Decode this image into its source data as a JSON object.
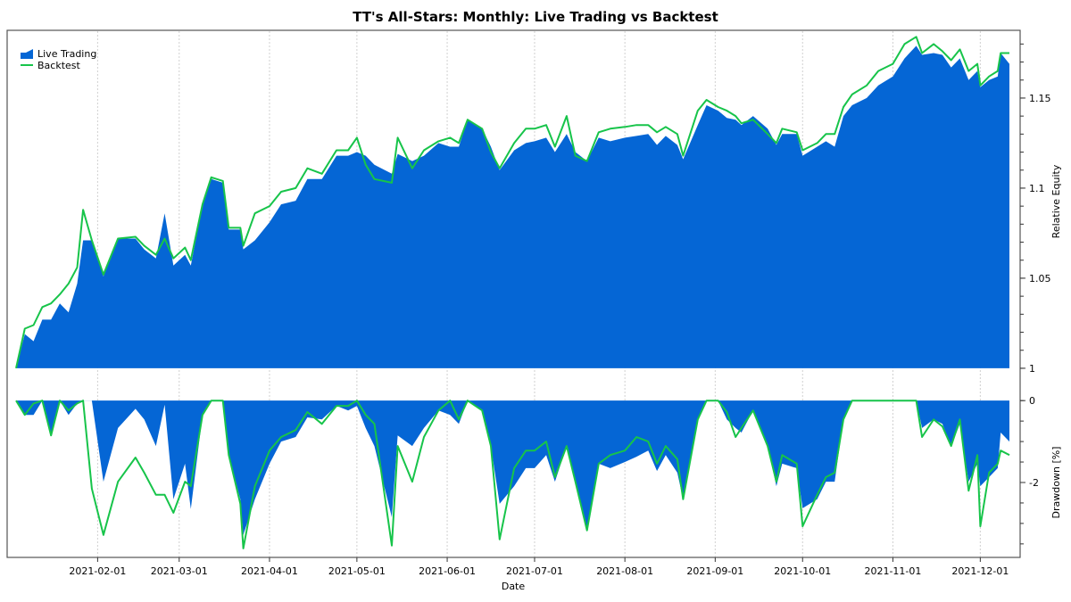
{
  "chart_data": [
    {
      "type": "area",
      "title": "TT's All-Stars: Monthly: Live Trading vs Backtest",
      "xlabel": "Date",
      "ylabel": "Relative Equity",
      "ylim": [
        0.9965,
        1.1876
      ],
      "xlim": [
        "2021-01-04",
        "2021-12-11"
      ],
      "x_ticks": [
        "2021-02-01",
        "2021-03-01",
        "2021-04-01",
        "2021-05-01",
        "2021-06-01",
        "2021-07-01",
        "2021-08-01",
        "2021-09-01",
        "2021-10-01",
        "2021-11-01",
        "2021-12-01"
      ],
      "y_ticks": [
        "1",
        "1.05",
        "1.1",
        "1.15"
      ],
      "y_tick_values": [
        1,
        1.05,
        1.1,
        1.15
      ],
      "grid": "vertical dotted at month ticks",
      "legend": "top-left",
      "colors": {
        "live": "#0566d5",
        "backtest": "#17c44a"
      },
      "x": [
        "2021-01-04",
        "2021-01-07",
        "2021-01-10",
        "2021-01-13",
        "2021-01-16",
        "2021-01-19",
        "2021-01-22",
        "2021-01-25",
        "2021-01-27",
        "2021-01-30",
        "2021-02-03",
        "2021-02-08",
        "2021-02-14",
        "2021-02-17",
        "2021-02-21",
        "2021-02-24",
        "2021-02-27",
        "2021-03-03",
        "2021-03-05",
        "2021-03-09",
        "2021-03-12",
        "2021-03-16",
        "2021-03-18",
        "2021-03-22",
        "2021-03-23",
        "2021-03-27",
        "2021-04-01",
        "2021-04-05",
        "2021-04-10",
        "2021-04-14",
        "2021-04-19",
        "2021-04-24",
        "2021-04-28",
        "2021-05-01",
        "2021-05-04",
        "2021-05-07",
        "2021-05-13",
        "2021-05-15",
        "2021-05-20",
        "2021-05-24",
        "2021-05-29",
        "2021-06-02",
        "2021-06-05",
        "2021-06-08",
        "2021-06-13",
        "2021-06-16",
        "2021-06-19",
        "2021-06-24",
        "2021-06-28",
        "2021-07-01",
        "2021-07-05",
        "2021-07-08",
        "2021-07-12",
        "2021-07-15",
        "2021-07-19",
        "2021-07-23",
        "2021-07-27",
        "2021-08-01",
        "2021-08-05",
        "2021-08-09",
        "2021-08-12",
        "2021-08-15",
        "2021-08-19",
        "2021-08-21",
        "2021-08-26",
        "2021-08-29",
        "2021-09-02",
        "2021-09-05",
        "2021-09-08",
        "2021-09-10",
        "2021-09-14",
        "2021-09-19",
        "2021-09-22",
        "2021-09-24",
        "2021-09-29",
        "2021-10-01",
        "2021-10-06",
        "2021-10-09",
        "2021-10-12",
        "2021-10-15",
        "2021-10-18",
        "2021-10-23",
        "2021-10-27",
        "2021-11-01",
        "2021-11-05",
        "2021-11-09",
        "2021-11-11",
        "2021-11-15",
        "2021-11-18",
        "2021-11-21",
        "2021-11-24",
        "2021-11-27",
        "2021-11-30",
        "2021-12-01",
        "2021-12-04",
        "2021-12-07",
        "2021-12-08",
        "2021-12-11"
      ],
      "series": [
        {
          "name": "Live Trading",
          "values": [
            1.0,
            1.019,
            1.015,
            1.027,
            1.027,
            1.036,
            1.031,
            1.047,
            1.071,
            1.071,
            1.051,
            1.072,
            1.072,
            1.066,
            1.061,
            1.086,
            1.057,
            1.063,
            1.057,
            1.091,
            1.105,
            1.103,
            1.077,
            1.077,
            1.066,
            1.071,
            1.081,
            1.091,
            1.093,
            1.105,
            1.105,
            1.118,
            1.118,
            1.12,
            1.118,
            1.113,
            1.108,
            1.119,
            1.115,
            1.118,
            1.125,
            1.123,
            1.123,
            1.138,
            1.133,
            1.123,
            1.11,
            1.121,
            1.125,
            1.126,
            1.128,
            1.12,
            1.13,
            1.12,
            1.115,
            1.128,
            1.126,
            1.128,
            1.129,
            1.13,
            1.124,
            1.129,
            1.124,
            1.116,
            1.135,
            1.146,
            1.143,
            1.139,
            1.138,
            1.135,
            1.14,
            1.133,
            1.124,
            1.13,
            1.13,
            1.118,
            1.123,
            1.126,
            1.123,
            1.14,
            1.146,
            1.15,
            1.157,
            1.162,
            1.172,
            1.179,
            1.174,
            1.175,
            1.174,
            1.167,
            1.172,
            1.16,
            1.165,
            1.156,
            1.16,
            1.162,
            1.175,
            1.169
          ]
        },
        {
          "name": "Backtest",
          "values": [
            1.0,
            1.022,
            1.024,
            1.034,
            1.036,
            1.041,
            1.047,
            1.056,
            1.088,
            1.071,
            1.052,
            1.072,
            1.073,
            1.068,
            1.063,
            1.072,
            1.061,
            1.067,
            1.06,
            1.091,
            1.106,
            1.104,
            1.078,
            1.078,
            1.068,
            1.086,
            1.09,
            1.098,
            1.1,
            1.111,
            1.108,
            1.121,
            1.121,
            1.128,
            1.113,
            1.105,
            1.103,
            1.128,
            1.111,
            1.121,
            1.126,
            1.128,
            1.125,
            1.138,
            1.133,
            1.12,
            1.111,
            1.125,
            1.133,
            1.133,
            1.135,
            1.123,
            1.14,
            1.118,
            1.115,
            1.131,
            1.133,
            1.134,
            1.135,
            1.135,
            1.131,
            1.134,
            1.13,
            1.118,
            1.143,
            1.149,
            1.145,
            1.143,
            1.14,
            1.136,
            1.138,
            1.13,
            1.125,
            1.133,
            1.131,
            1.121,
            1.125,
            1.13,
            1.13,
            1.145,
            1.152,
            1.157,
            1.165,
            1.169,
            1.18,
            1.184,
            1.175,
            1.18,
            1.176,
            1.171,
            1.177,
            1.165,
            1.169,
            1.157,
            1.162,
            1.165,
            1.175,
            1.175
          ]
        }
      ]
    },
    {
      "type": "area",
      "xlabel": "Date",
      "ylabel": "Drawdown [%]",
      "ylim": [
        -3.83,
        0.2
      ],
      "y_ticks": [
        "0",
        "-2"
      ],
      "y_tick_values": [
        0,
        -2
      ],
      "series": [
        {
          "name": "Live Trading",
          "values": [
            0,
            -0.35,
            -0.35,
            0,
            -0.85,
            0,
            -0.35,
            -0.07,
            0,
            0,
            -1.98,
            -0.67,
            -0.2,
            -0.46,
            -1.11,
            -0.1,
            -2.41,
            -1.54,
            -2.65,
            -0.35,
            0,
            0,
            -1.33,
            -2.41,
            -3.28,
            -2.41,
            -1.54,
            -1.0,
            -0.89,
            -0.41,
            -0.46,
            -0.13,
            -0.24,
            -0.13,
            -0.67,
            -1.11,
            -2.85,
            -0.85,
            -1.11,
            -0.67,
            -0.24,
            -0.35,
            -0.57,
            0,
            -0.24,
            -1.11,
            -2.52,
            -2.09,
            -1.65,
            -1.65,
            -1.33,
            -1.98,
            -1.11,
            -1.98,
            -3.17,
            -1.54,
            -1.65,
            -1.5,
            -1.37,
            -1.22,
            -1.72,
            -1.33,
            -1.76,
            -2.41,
            -0.46,
            0,
            0,
            -0.46,
            -0.67,
            -0.78,
            -0.24,
            -1.11,
            -2.09,
            -1.54,
            -1.65,
            -2.63,
            -2.41,
            -1.98,
            -1.98,
            -0.46,
            0,
            0,
            0,
            0,
            0,
            0,
            -0.67,
            -0.46,
            -0.57,
            -1.11,
            -0.57,
            -1.98,
            -1.54,
            -2.09,
            -1.87,
            -1.65,
            -0.78,
            -1.0
          ]
        },
        {
          "name": "Backtest",
          "values": [
            0,
            -0.35,
            -0.07,
            0,
            -0.85,
            0,
            -0.24,
            -0.07,
            0,
            -2.15,
            -3.28,
            -1.98,
            -1.39,
            -1.76,
            -2.3,
            -2.3,
            -2.74,
            -1.98,
            -2.09,
            -0.35,
            0,
            0,
            -1.33,
            -2.52,
            -3.61,
            -2.09,
            -1.22,
            -0.89,
            -0.72,
            -0.28,
            -0.57,
            -0.13,
            -0.13,
            0,
            -0.35,
            -0.57,
            -3.54,
            -1.11,
            -1.98,
            -0.89,
            -0.24,
            0,
            -0.46,
            0,
            -0.24,
            -1.11,
            -3.39,
            -1.65,
            -1.22,
            -1.22,
            -1.0,
            -1.87,
            -1.11,
            -1.98,
            -3.17,
            -1.54,
            -1.33,
            -1.22,
            -0.89,
            -1.0,
            -1.54,
            -1.11,
            -1.43,
            -2.41,
            -0.46,
            0,
            0,
            -0.28,
            -0.89,
            -0.67,
            -0.24,
            -1.11,
            -1.98,
            -1.33,
            -1.54,
            -3.07,
            -2.3,
            -1.87,
            -1.76,
            -0.46,
            0,
            0,
            0,
            0,
            0,
            0,
            -0.89,
            -0.46,
            -0.63,
            -1.11,
            -0.46,
            -2.2,
            -1.33,
            -3.07,
            -1.76,
            -1.54,
            -1.22,
            -1.33
          ]
        }
      ]
    }
  ]
}
